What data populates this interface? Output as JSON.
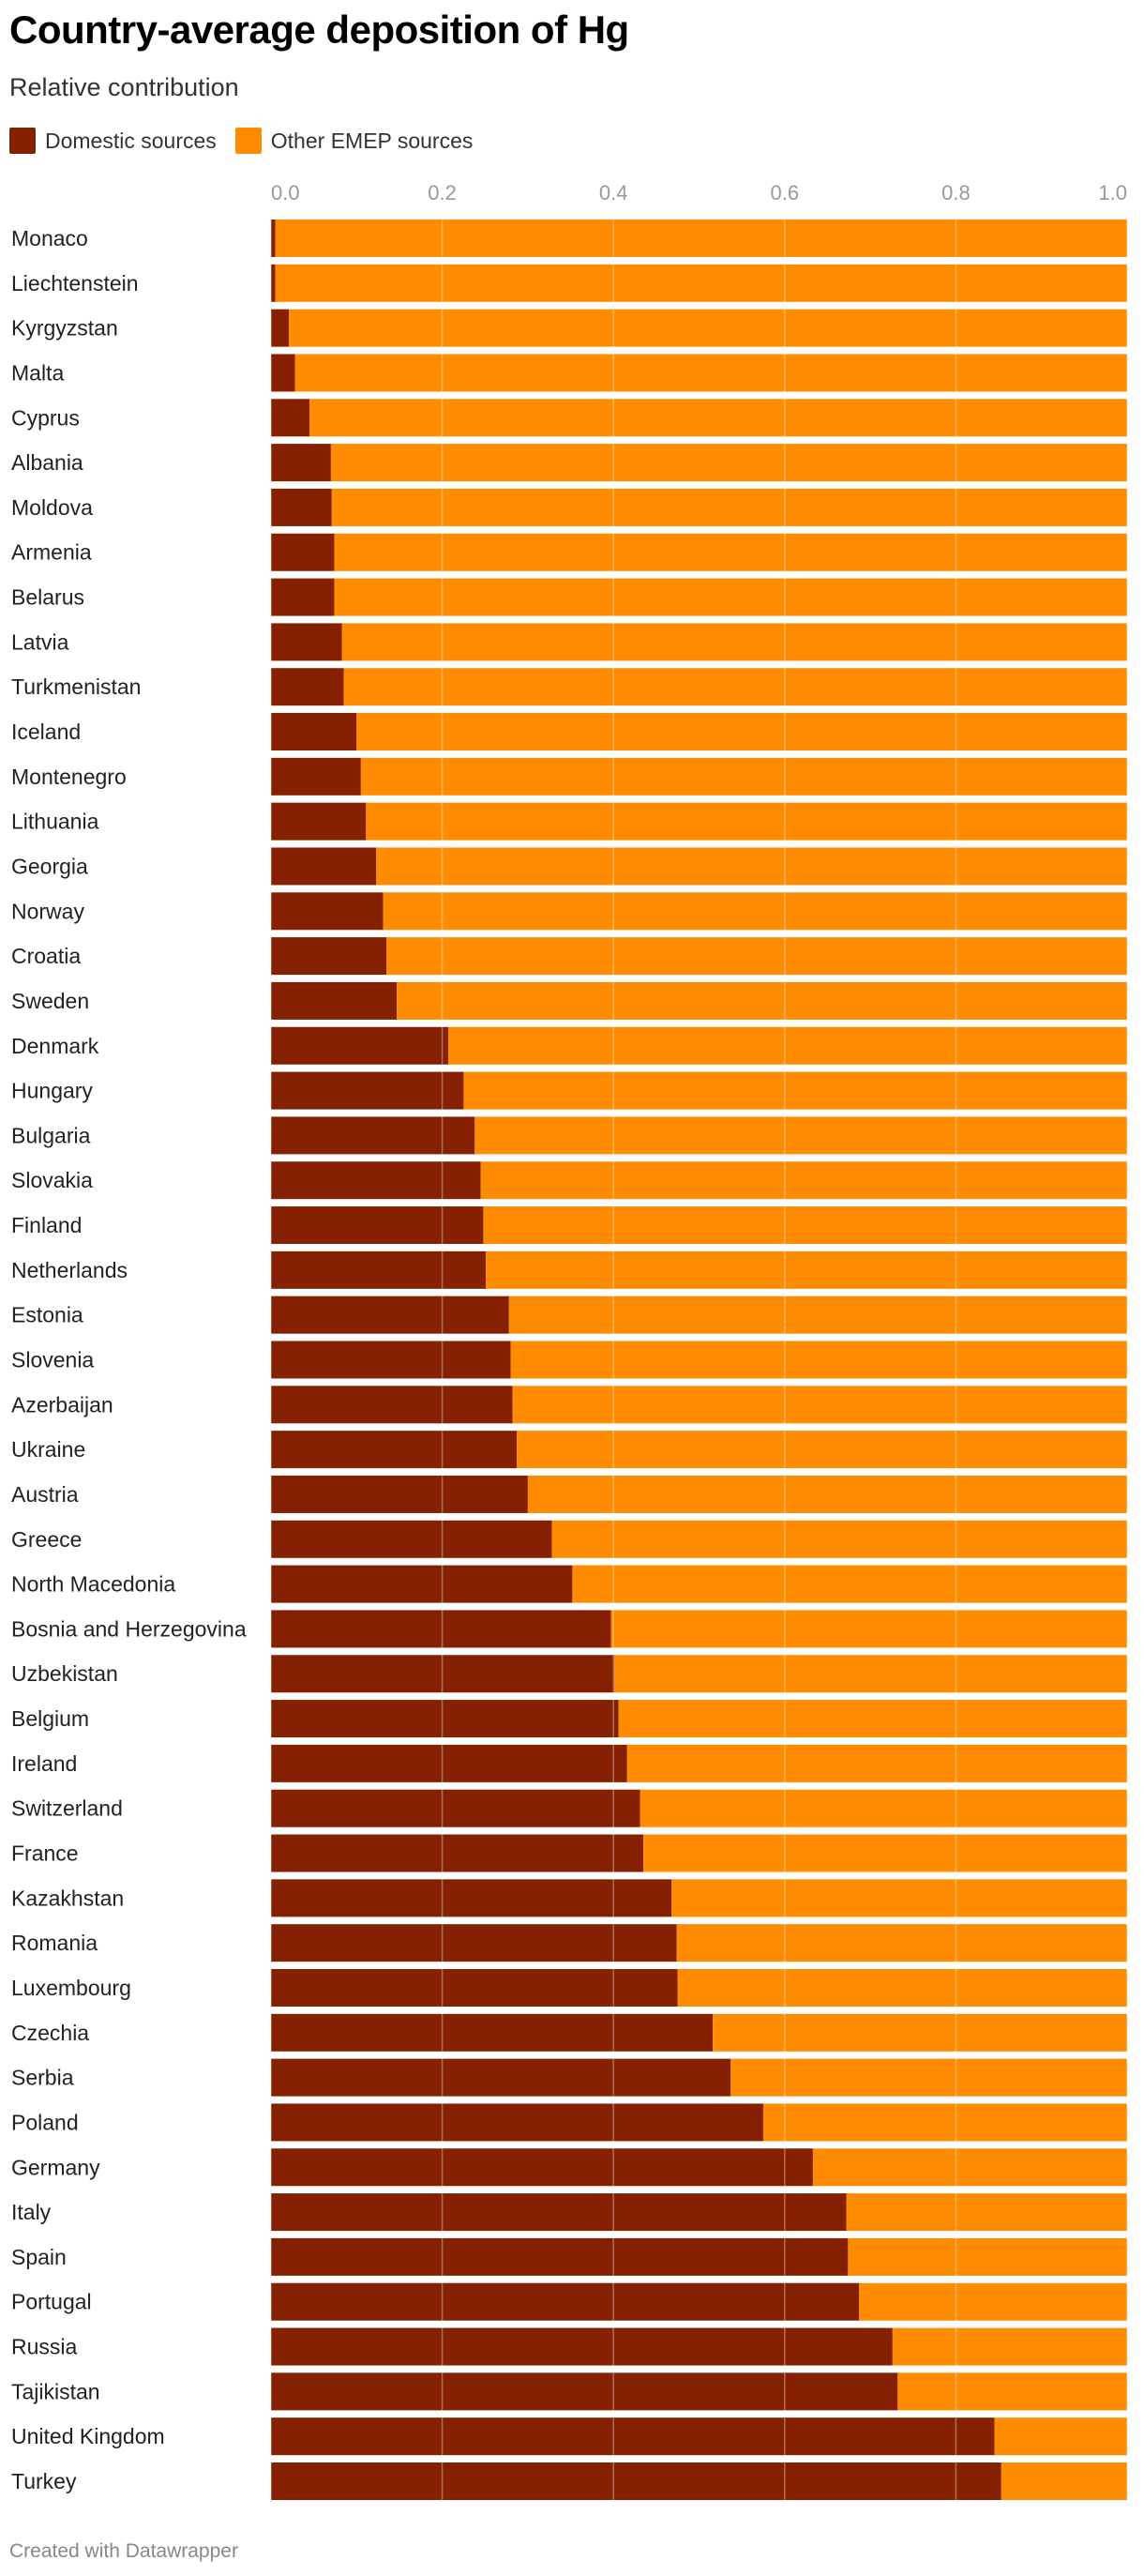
{
  "header": {
    "title": "Country-average deposition of Hg",
    "subtitle": "Relative contribution"
  },
  "footer": {
    "credit": "Created with Datawrapper"
  },
  "chart_data": {
    "type": "bar",
    "orientation": "horizontal",
    "stacked": true,
    "grid": true,
    "legend_position": "top-left",
    "xlim": [
      0,
      1
    ],
    "x_ticks": [
      "0.0",
      "0.2",
      "0.4",
      "0.6",
      "0.8",
      "1.0"
    ],
    "categories": [
      "Monaco",
      "Liechtenstein",
      "Kyrgyzstan",
      "Malta",
      "Cyprus",
      "Albania",
      "Moldova",
      "Armenia",
      "Belarus",
      "Latvia",
      "Turkmenistan",
      "Iceland",
      "Montenegro",
      "Lithuania",
      "Georgia",
      "Norway",
      "Croatia",
      "Sweden",
      "Denmark",
      "Hungary",
      "Bulgaria",
      "Slovakia",
      "Finland",
      "Netherlands",
      "Estonia",
      "Slovenia",
      "Azerbaijan",
      "Ukraine",
      "Austria",
      "Greece",
      "North Macedonia",
      "Bosnia and Herzegovina",
      "Uzbekistan",
      "Belgium",
      "Ireland",
      "Switzerland",
      "France",
      "Kazakhstan",
      "Romania",
      "Luxembourg",
      "Czechia",
      "Serbia",
      "Poland",
      "Germany",
      "Italy",
      "Spain",
      "Portugal",
      "Russia",
      "Tajikistan",
      "United Kingdom",
      "Turkey"
    ],
    "series": [
      {
        "name": "Domestic sources",
        "color": "#852100",
        "values": [
          0.005,
          0.005,
          0.021,
          0.028,
          0.045,
          0.07,
          0.071,
          0.074,
          0.074,
          0.083,
          0.085,
          0.1,
          0.105,
          0.111,
          0.123,
          0.131,
          0.135,
          0.147,
          0.207,
          0.225,
          0.238,
          0.245,
          0.248,
          0.251,
          0.278,
          0.28,
          0.282,
          0.287,
          0.3,
          0.328,
          0.352,
          0.397,
          0.401,
          0.406,
          0.416,
          0.431,
          0.435,
          0.468,
          0.474,
          0.475,
          0.516,
          0.537,
          0.575,
          0.633,
          0.672,
          0.674,
          0.687,
          0.726,
          0.732,
          0.845,
          0.853
        ]
      },
      {
        "name": "Other EMEP sources",
        "color": "#ff8c00",
        "values": [
          0.995,
          0.995,
          0.979,
          0.972,
          0.955,
          0.93,
          0.929,
          0.926,
          0.926,
          0.917,
          0.915,
          0.9,
          0.895,
          0.889,
          0.877,
          0.869,
          0.865,
          0.853,
          0.793,
          0.775,
          0.762,
          0.755,
          0.752,
          0.749,
          0.722,
          0.72,
          0.718,
          0.713,
          0.7,
          0.672,
          0.648,
          0.603,
          0.599,
          0.594,
          0.584,
          0.569,
          0.565,
          0.532,
          0.526,
          0.525,
          0.484,
          0.463,
          0.425,
          0.367,
          0.328,
          0.326,
          0.313,
          0.274,
          0.268,
          0.155,
          0.147
        ]
      }
    ]
  }
}
